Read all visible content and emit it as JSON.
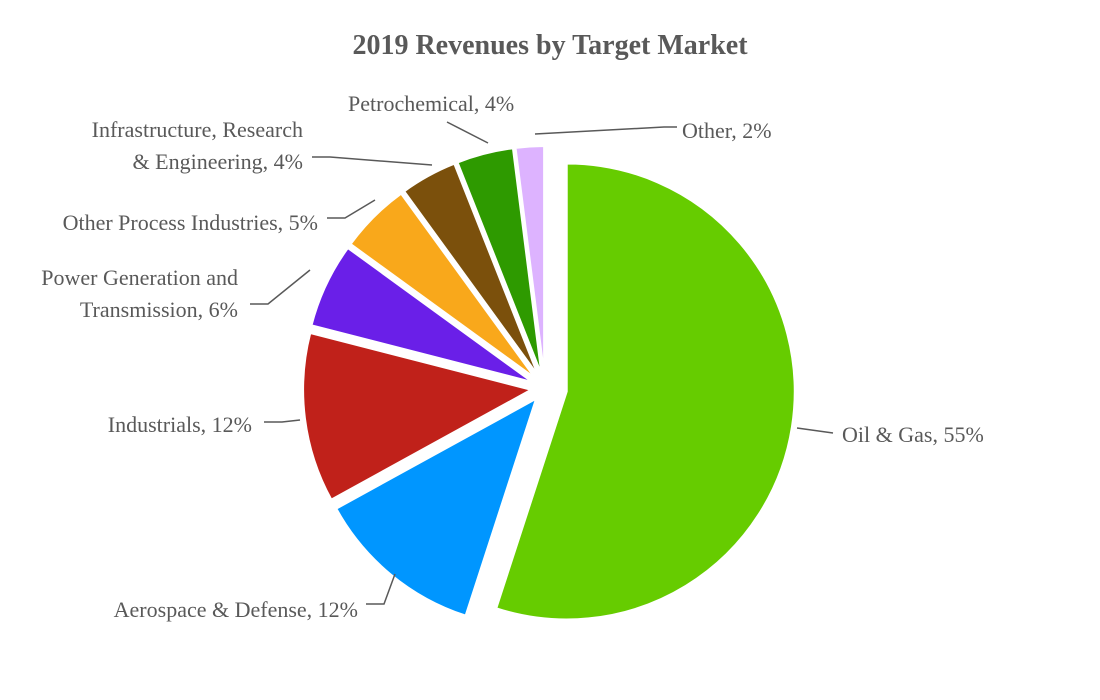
{
  "chart_data": {
    "type": "pie",
    "title": "2019 Revenues by Target Market",
    "start_angle_deg": 0,
    "direction": "clockwise",
    "slices": [
      {
        "name": "Oil & Gas",
        "value": 55,
        "label": "Oil & Gas, 55%",
        "color": "#66CC00",
        "exploded": true
      },
      {
        "name": "Aerospace & Defense",
        "value": 12,
        "label": "Aerospace & Defense, 12%",
        "color": "#0096FF",
        "exploded": true
      },
      {
        "name": "Industrials",
        "value": 12,
        "label": "Industrials, 12%",
        "color": "#C0211A",
        "exploded": true
      },
      {
        "name": "Power Generation and Transmission",
        "value": 6,
        "label": "Power Generation and|Transmission, 6%",
        "color": "#6A1FE8",
        "exploded": true
      },
      {
        "name": "Other Process Industries",
        "value": 5,
        "label": "Other Process Industries, 5%",
        "color": "#F9A81B",
        "exploded": true
      },
      {
        "name": "Infrastructure, Research & Engineering",
        "value": 4,
        "label": "Infrastructure, Research|& Engineering, 4%",
        "color": "#7B500C",
        "exploded": true
      },
      {
        "name": "Petrochemical",
        "value": 4,
        "label": "Petrochemical, 4%",
        "color": "#2E9A00",
        "exploded": true
      },
      {
        "name": "Other",
        "value": 2,
        "label": "Other, 2%",
        "color": "#DDB3FF",
        "exploded": true
      }
    ]
  }
}
